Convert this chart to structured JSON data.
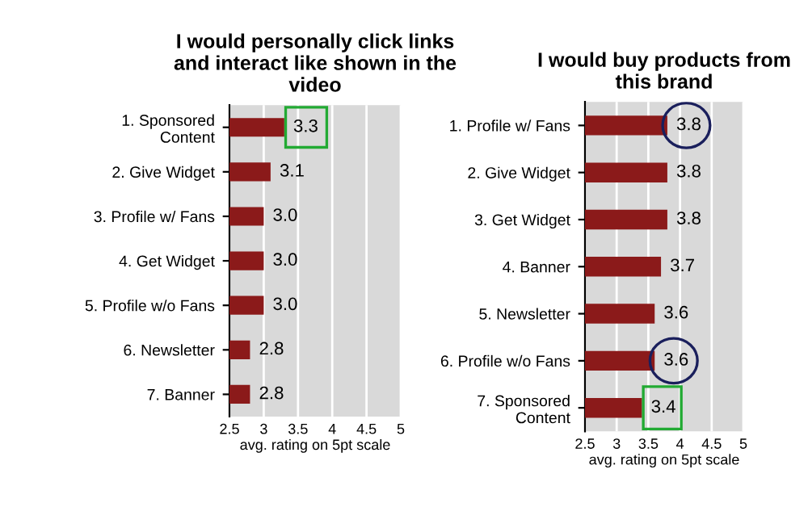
{
  "chart_data": [
    {
      "type": "bar",
      "orientation": "horizontal",
      "title": "I would personally click links\nand interact like shown in the\nvideo",
      "categories": [
        "1. Sponsored\nContent",
        "2. Give Widget",
        "3. Profile w/ Fans",
        "4. Get Widget",
        "5. Profile w/o Fans",
        "6. Newsletter",
        "7. Banner"
      ],
      "values": [
        3.3,
        3.1,
        3.0,
        3.0,
        3.0,
        2.8,
        2.8
      ],
      "value_labels": [
        "3.3",
        "3.1",
        "3.0",
        "3.0",
        "3.0",
        "2.8",
        "2.8"
      ],
      "color": "#8b1a1a",
      "xlim": [
        2.5,
        5
      ],
      "xticks": [
        2.5,
        3,
        3.5,
        4,
        4.5,
        5
      ],
      "xlabel": "avg. rating on 5pt scale",
      "grid": "x"
    },
    {
      "type": "bar",
      "orientation": "horizontal",
      "title": "I would buy products from\nthis brand",
      "categories": [
        "1. Profile w/ Fans",
        "2. Give Widget",
        "3. Get Widget",
        "4. Banner",
        "5. Newsletter",
        "6. Profile w/o Fans",
        "7. Sponsored\nContent"
      ],
      "values": [
        3.8,
        3.8,
        3.8,
        3.7,
        3.6,
        3.6,
        3.4
      ],
      "color": "#8b1a1a",
      "xlim": [
        2.5,
        5
      ],
      "xticks": [
        2.5,
        3,
        3.5,
        4,
        4.5,
        5
      ],
      "xlabel": "avg. rating on 5pt scale",
      "grid": "x",
      "data_labels": true
    }
  ]
}
